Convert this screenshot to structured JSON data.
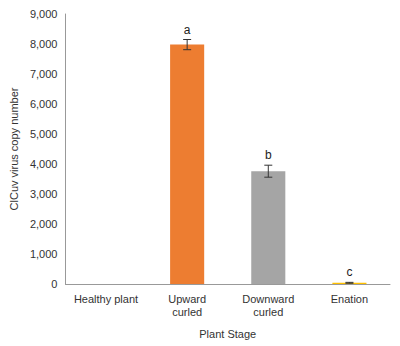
{
  "chart_data": {
    "type": "bar",
    "x_label": "Plant Stage",
    "y_label": "ClCuv virus copy number",
    "categories": [
      "Healthy plant",
      "Upward\ncurled",
      "Downward\ncurled",
      "Enation"
    ],
    "values": [
      0,
      7980,
      3760,
      40
    ],
    "errors": [
      0,
      170,
      200,
      15
    ],
    "annotations": [
      null,
      "a",
      "b",
      "c"
    ],
    "colors": [
      "#4472c4",
      "#ed7d31",
      "#a5a5a5",
      "#ffc000"
    ],
    "ylim": [
      0,
      9000
    ],
    "yticks": [
      0,
      1000,
      2000,
      3000,
      4000,
      5000,
      6000,
      7000,
      8000,
      9000
    ],
    "grid": false
  }
}
